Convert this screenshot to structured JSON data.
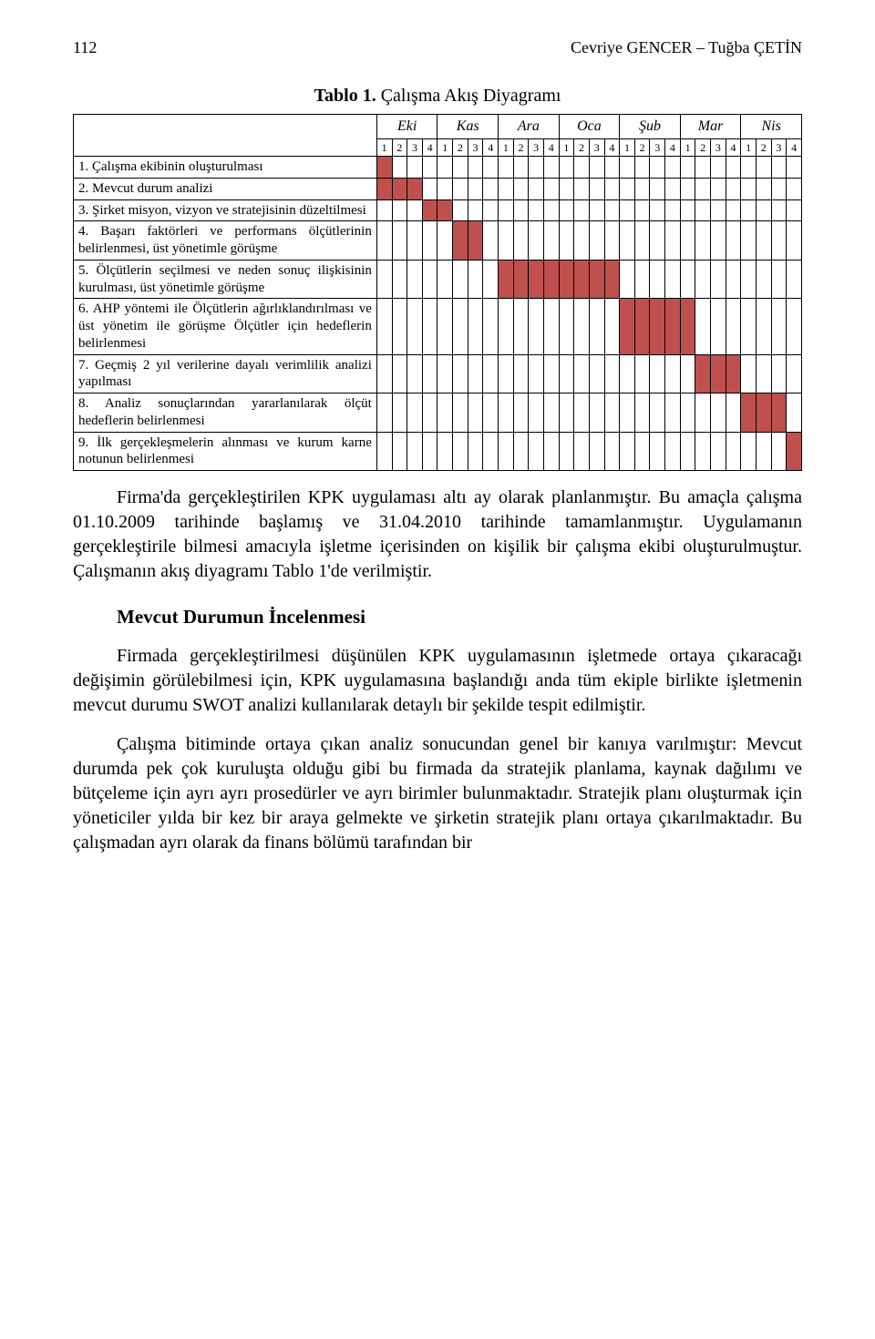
{
  "header": {
    "page_number": "112",
    "authors": "Cevriye GENCER – Tuğba ÇETİN"
  },
  "table": {
    "caption_bold": "Tablo 1.",
    "caption_rest": " Çalışma Akış Diyagramı",
    "months": [
      "Eki",
      "Kas",
      "Ara",
      "Oca",
      "Şub",
      "Mar",
      "Nis"
    ],
    "weeks": [
      "1",
      "2",
      "3",
      "4"
    ],
    "fill_color": "#c0504d",
    "tasks": [
      {
        "name": "1. Çalışma ekibinin oluşturulması",
        "start": 0,
        "end": 1
      },
      {
        "name": "2. Mevcut durum analizi",
        "start": 0,
        "end": 3
      },
      {
        "name": "3. Şirket misyon, vizyon ve stratejisinin düzeltilmesi",
        "start": 3,
        "end": 5
      },
      {
        "name": "4. Başarı faktörleri ve performans ölçütlerinin belirlenmesi, üst yönetimle görüşme",
        "start": 5,
        "end": 7
      },
      {
        "name": "5. Ölçütlerin seçilmesi ve neden sonuç ilişkisinin kurulması, üst yönetimle görüşme",
        "start": 8,
        "end": 16
      },
      {
        "name": "6. AHP yöntemi ile Ölçütlerin ağırlıklandırılması ve üst yönetim ile görüşme Ölçütler için hedeflerin belirlenmesi",
        "start": 16,
        "end": 21
      },
      {
        "name": "7. Geçmiş 2 yıl verilerine dayalı verimlilik analizi yapılması",
        "start": 21,
        "end": 24
      },
      {
        "name": "8. Analiz sonuçlarından yararlanılarak ölçüt hedeflerin belirlenmesi",
        "start": 24,
        "end": 27
      },
      {
        "name": "9. İlk gerçekleşmelerin alınması ve kurum karne notunun belirlenmesi",
        "start": 27,
        "end": 28
      }
    ]
  },
  "paragraphs": {
    "p1": "Firma'da gerçekleştirilen KPK uygulaması altı ay olarak planlanmıştır. Bu amaçla çalışma 01.10.2009 tarihinde başlamış ve 31.04.2010 tarihinde tamamlanmıştır. Uygulamanın gerçekleştirile bilmesi amacıyla işletme içerisinden on kişilik bir çalışma ekibi oluşturulmuştur. Çalışmanın akış diyagramı Tablo 1'de verilmiştir.",
    "h1": "Mevcut Durumun İncelenmesi",
    "p2": "Firmada gerçekleştirilmesi düşünülen KPK uygulamasının işletmede ortaya çıkaracağı değişimin görülebilmesi için, KPK uygulamasına başlandığı anda tüm ekiple birlikte işletmenin mevcut durumu SWOT analizi kullanılarak detaylı bir şekilde tespit edilmiştir.",
    "p3": "Çalışma bitiminde ortaya çıkan analiz sonucundan genel bir kanıya varılmıştır: Mevcut durumda pek çok kuruluşta olduğu gibi bu firmada da stratejik planlama, kaynak dağılımı ve bütçeleme için ayrı ayrı prosedürler ve ayrı birimler bulunmaktadır. Stratejik planı oluşturmak için yöneticiler yılda bir kez bir araya gelmekte ve şirketin stratejik planı ortaya çıkarılmaktadır. Bu çalışmadan ayrı olarak da finans bölümü tarafından bir"
  }
}
